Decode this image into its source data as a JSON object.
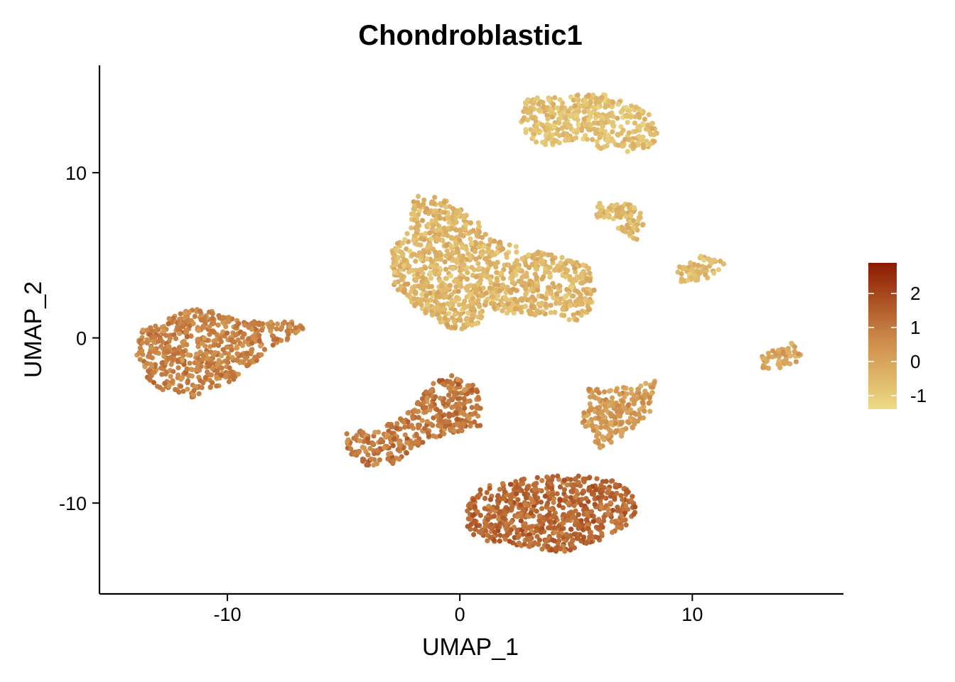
{
  "chart_data": {
    "type": "scatter",
    "title": "Chondroblastic1",
    "xlabel": "UMAP_1",
    "ylabel": "UMAP_2",
    "xlim": [
      -15.5,
      16.5
    ],
    "ylim": [
      -15.5,
      16.5
    ],
    "x_ticks": [
      -10,
      0,
      10
    ],
    "y_ticks": [
      -10,
      0,
      10
    ],
    "x_tick_labels": [
      "-10",
      "0",
      "10"
    ],
    "y_tick_labels": [
      "-10",
      "0",
      "10"
    ],
    "grid": false,
    "legend": {
      "type": "colorbar",
      "placement": "right",
      "range": [
        -1.4,
        2.9
      ],
      "ticks": [
        -1,
        0,
        1,
        2
      ],
      "tick_labels": [
        "-1",
        "0",
        "1",
        "2"
      ],
      "colors": {
        "low": "#eddc85",
        "mid": "#cd8b4a",
        "high": "#8b1a00"
      }
    },
    "clusters": [
      {
        "name": "",
        "shape": [
          [
            -13.8,
            0.4
          ],
          [
            -12.5,
            1.2
          ],
          [
            -11.5,
            1.8
          ],
          [
            -10.5,
            1.6
          ],
          [
            -9.5,
            1.0
          ],
          [
            -8.5,
            1.0
          ],
          [
            -7.3,
            1.0
          ],
          [
            -6.6,
            0.7
          ],
          [
            -7.5,
            -0.2
          ],
          [
            -8.5,
            -1.2
          ],
          [
            -9.5,
            -2.4
          ],
          [
            -10.5,
            -3.2
          ],
          [
            -11.5,
            -3.6
          ],
          [
            -12.5,
            -3.4
          ],
          [
            -13.4,
            -2.6
          ],
          [
            -13.9,
            -1.0
          ]
        ],
        "values": [
          0.8,
          1.0,
          0.9,
          0.6,
          0.3,
          0.6,
          1.2
        ]
      },
      {
        "name": "",
        "shape": [
          [
            -2.0,
            8.6
          ],
          [
            -0.8,
            8.5
          ],
          [
            0.8,
            7.2
          ],
          [
            1.2,
            6.0
          ],
          [
            2.5,
            5.5
          ],
          [
            4.0,
            5.0
          ],
          [
            5.5,
            4.5
          ],
          [
            5.8,
            3.0
          ],
          [
            5.6,
            1.5
          ],
          [
            5.0,
            1.0
          ],
          [
            4.0,
            1.2
          ],
          [
            2.5,
            1.5
          ],
          [
            1.2,
            1.5
          ],
          [
            0.6,
            0.6
          ],
          [
            -0.5,
            0.4
          ],
          [
            -1.5,
            1.5
          ],
          [
            -2.5,
            2.5
          ],
          [
            -3.0,
            3.5
          ],
          [
            -2.9,
            5.5
          ],
          [
            -2.2,
            6.5
          ]
        ],
        "values": [
          -0.4,
          -0.5,
          -0.3,
          -0.8,
          -0.6,
          -0.2
        ]
      },
      {
        "name": "",
        "shape": [
          [
            2.8,
            14.5
          ],
          [
            4.5,
            14.6
          ],
          [
            5.8,
            14.9
          ],
          [
            7.0,
            14.4
          ],
          [
            8.2,
            13.6
          ],
          [
            8.5,
            12.5
          ],
          [
            8.3,
            11.6
          ],
          [
            7.4,
            11.3
          ],
          [
            6.2,
            11.2
          ],
          [
            5.4,
            12.0
          ],
          [
            4.6,
            11.8
          ],
          [
            3.8,
            11.6
          ],
          [
            3.0,
            12.0
          ],
          [
            2.6,
            13.0
          ]
        ],
        "values": [
          -0.7,
          -0.9,
          -0.5,
          -0.6
        ]
      },
      {
        "name": "",
        "shape": [
          [
            6.0,
            8.2
          ],
          [
            6.8,
            8.3
          ],
          [
            7.5,
            8.0
          ],
          [
            8.0,
            7.3
          ],
          [
            7.8,
            6.5
          ],
          [
            7.6,
            5.9
          ],
          [
            7.0,
            6.5
          ],
          [
            6.2,
            7.1
          ],
          [
            5.6,
            7.1
          ],
          [
            5.8,
            7.6
          ]
        ],
        "values": [
          -0.6,
          -0.4
        ]
      },
      {
        "name": "",
        "shape": [
          [
            9.7,
            4.6
          ],
          [
            10.4,
            5.0
          ],
          [
            11.0,
            5.0
          ],
          [
            11.4,
            4.4
          ],
          [
            11.1,
            3.8
          ],
          [
            10.4,
            3.5
          ],
          [
            9.6,
            3.1
          ],
          [
            9.4,
            3.6
          ],
          [
            9.3,
            4.3
          ]
        ],
        "values": [
          -0.8,
          -0.5
        ]
      },
      {
        "name": "",
        "shape": [
          [
            13.7,
            -0.5
          ],
          [
            14.3,
            -0.3
          ],
          [
            14.8,
            -0.8
          ],
          [
            14.5,
            -1.5
          ],
          [
            13.6,
            -1.9
          ],
          [
            13.0,
            -1.8
          ],
          [
            12.9,
            -1.1
          ]
        ],
        "values": [
          -0.2,
          0.1
        ]
      },
      {
        "name": "",
        "shape": [
          [
            -1.2,
            -2.6
          ],
          [
            -0.3,
            -2.2
          ],
          [
            0.6,
            -2.7
          ],
          [
            0.9,
            -3.8
          ],
          [
            1.0,
            -5.3
          ],
          [
            0.2,
            -5.6
          ],
          [
            -0.8,
            -6.0
          ],
          [
            -1.8,
            -6.6
          ],
          [
            -2.4,
            -7.2
          ],
          [
            -3.0,
            -7.7
          ],
          [
            -4.0,
            -7.8
          ],
          [
            -4.8,
            -6.9
          ],
          [
            -4.9,
            -5.8
          ],
          [
            -3.5,
            -5.4
          ],
          [
            -2.4,
            -4.8
          ],
          [
            -1.8,
            -3.8
          ]
        ],
        "values": [
          1.0,
          0.7,
          1.6,
          0.4,
          1.2
        ]
      },
      {
        "name": "",
        "shape": [
          [
            5.5,
            -3.0
          ],
          [
            6.5,
            -3.1
          ],
          [
            7.5,
            -2.9
          ],
          [
            8.4,
            -2.6
          ],
          [
            8.3,
            -3.5
          ],
          [
            8.3,
            -4.5
          ],
          [
            7.4,
            -5.5
          ],
          [
            6.6,
            -6.3
          ],
          [
            6.0,
            -6.8
          ],
          [
            5.6,
            -5.6
          ],
          [
            5.2,
            -5.3
          ],
          [
            5.4,
            -4.2
          ]
        ],
        "values": [
          0.2,
          0.0,
          0.5
        ]
      },
      {
        "name": "",
        "shape": [
          [
            1.0,
            -9.0
          ],
          [
            2.5,
            -8.6
          ],
          [
            3.5,
            -8.4
          ],
          [
            5.0,
            -8.3
          ],
          [
            6.5,
            -8.6
          ],
          [
            7.4,
            -9.2
          ],
          [
            7.6,
            -10.5
          ],
          [
            7.2,
            -11.3
          ],
          [
            6.4,
            -12.0
          ],
          [
            5.5,
            -12.6
          ],
          [
            4.5,
            -13.0
          ],
          [
            3.0,
            -12.7
          ],
          [
            2.0,
            -12.4
          ],
          [
            1.2,
            -12.3
          ],
          [
            0.4,
            -11.8
          ],
          [
            0.2,
            -10.8
          ],
          [
            0.5,
            -9.7
          ]
        ],
        "values": [
          1.2,
          1.5,
          1.1,
          0.9,
          1.8
        ]
      }
    ]
  }
}
